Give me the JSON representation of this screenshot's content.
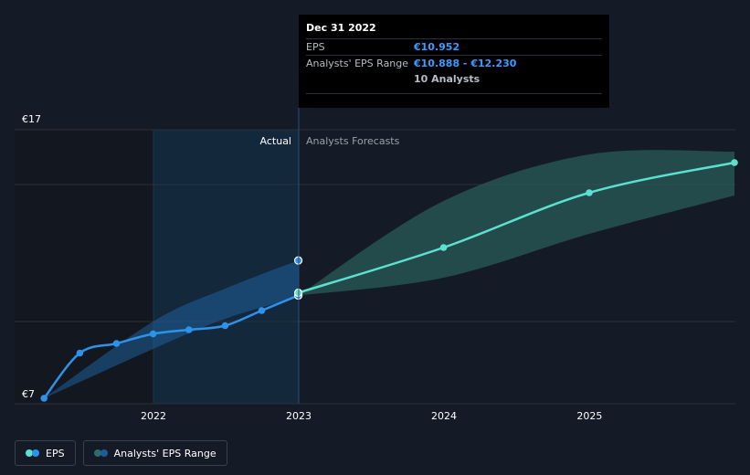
{
  "chart_data": {
    "type": "line",
    "ylabel_top": "€17",
    "ylabel_bottom": "€7",
    "ylim": [
      7,
      17
    ],
    "x_ticks": [
      "2022",
      "2023",
      "2024",
      "2025"
    ],
    "actual_label": "Actual",
    "forecast_label": "Analysts Forecasts",
    "series": [
      {
        "name": "EPS",
        "kind": "actual",
        "color": "#2e93e8",
        "points": [
          {
            "x": "2021-04-01",
            "y": 7.2
          },
          {
            "x": "2021-06-30",
            "y": 8.85
          },
          {
            "x": "2021-09-30",
            "y": 9.2
          },
          {
            "x": "2021-12-31",
            "y": 9.55
          },
          {
            "x": "2022-03-31",
            "y": 9.7
          },
          {
            "x": "2022-06-30",
            "y": 9.85
          },
          {
            "x": "2022-09-30",
            "y": 10.4
          },
          {
            "x": "2022-12-31",
            "y": 10.952
          }
        ]
      },
      {
        "name": "EPS",
        "kind": "forecast",
        "color": "#5ce0d0",
        "points": [
          {
            "x": "2022-12-31",
            "y": 11.05
          },
          {
            "x": "2023-12-31",
            "y": 12.7
          },
          {
            "x": "2024-12-31",
            "y": 14.7
          },
          {
            "x": "2025-12-31",
            "y": 15.8
          }
        ]
      }
    ],
    "range_actual": [
      {
        "x": "2021-04-01",
        "low": 7.2,
        "high": 7.2
      },
      {
        "x": "2021-12-31",
        "low": 9.0,
        "high": 10.0
      },
      {
        "x": "2022-06-30",
        "low": 10.1,
        "high": 11.2
      },
      {
        "x": "2022-12-31",
        "low": 10.888,
        "high": 12.23
      }
    ],
    "range_forecast": [
      {
        "x": "2022-12-31",
        "low": 10.95,
        "high": 10.95
      },
      {
        "x": "2023-12-31",
        "low": 11.6,
        "high": 14.4
      },
      {
        "x": "2024-12-31",
        "low": 13.2,
        "high": 16.1
      },
      {
        "x": "2025-12-31",
        "low": 14.6,
        "high": 16.2
      }
    ]
  },
  "tooltip": {
    "date": "Dec 31 2022",
    "eps_label": "EPS",
    "eps_value": "€10.952",
    "range_label": "Analysts' EPS Range",
    "range_value": "€10.888 - €12.230",
    "analysts": "10 Analysts"
  },
  "legend": {
    "eps": "EPS",
    "range": "Analysts' EPS Range"
  },
  "colors": {
    "actual_line": "#2e93e8",
    "forecast_line": "#5ce0d0",
    "actual_band": "#1d5e99",
    "forecast_band": "#2a5c5a"
  }
}
